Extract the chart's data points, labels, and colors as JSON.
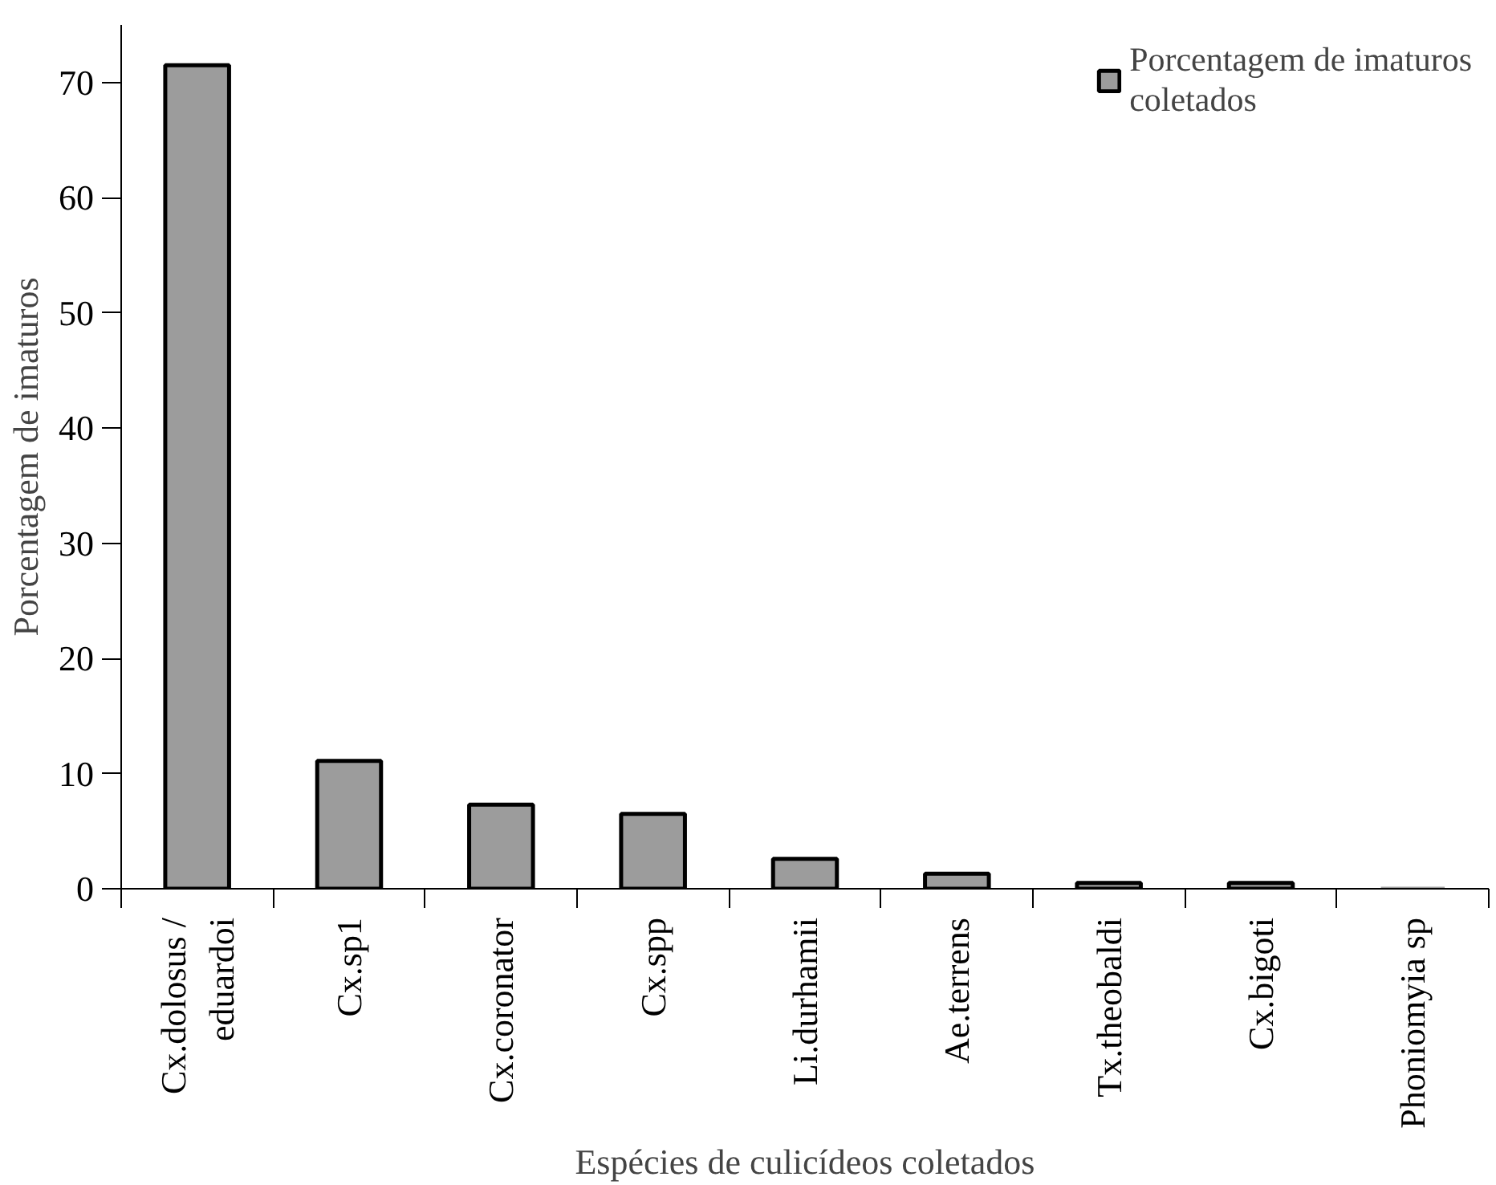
{
  "chart_data": {
    "type": "bar",
    "xlabel": "Espécies de culicídeos coletados",
    "ylabel": "Porcentagem de imaturos",
    "categories": [
      "Cx.dolosus /\neduardoi",
      "Cx.sp1",
      "Cx.coronator",
      "Cx.spp",
      "Li.durhamii",
      "Ae.terrens",
      "Tx.theobaldi",
      "Cx.bigoti",
      "Phoniomyia sp"
    ],
    "series": [
      {
        "name": "Porcentagem de imaturos\ncoletados",
        "color": "#9c9c9c",
        "values": [
          71.5,
          11.1,
          7.3,
          6.5,
          2.6,
          1.3,
          0.5,
          0.5,
          0
        ]
      }
    ],
    "ylim": [
      0,
      75
    ],
    "yticks": [
      0,
      10,
      20,
      30,
      40,
      50,
      60,
      70
    ],
    "grid": false,
    "legend": "top right"
  }
}
